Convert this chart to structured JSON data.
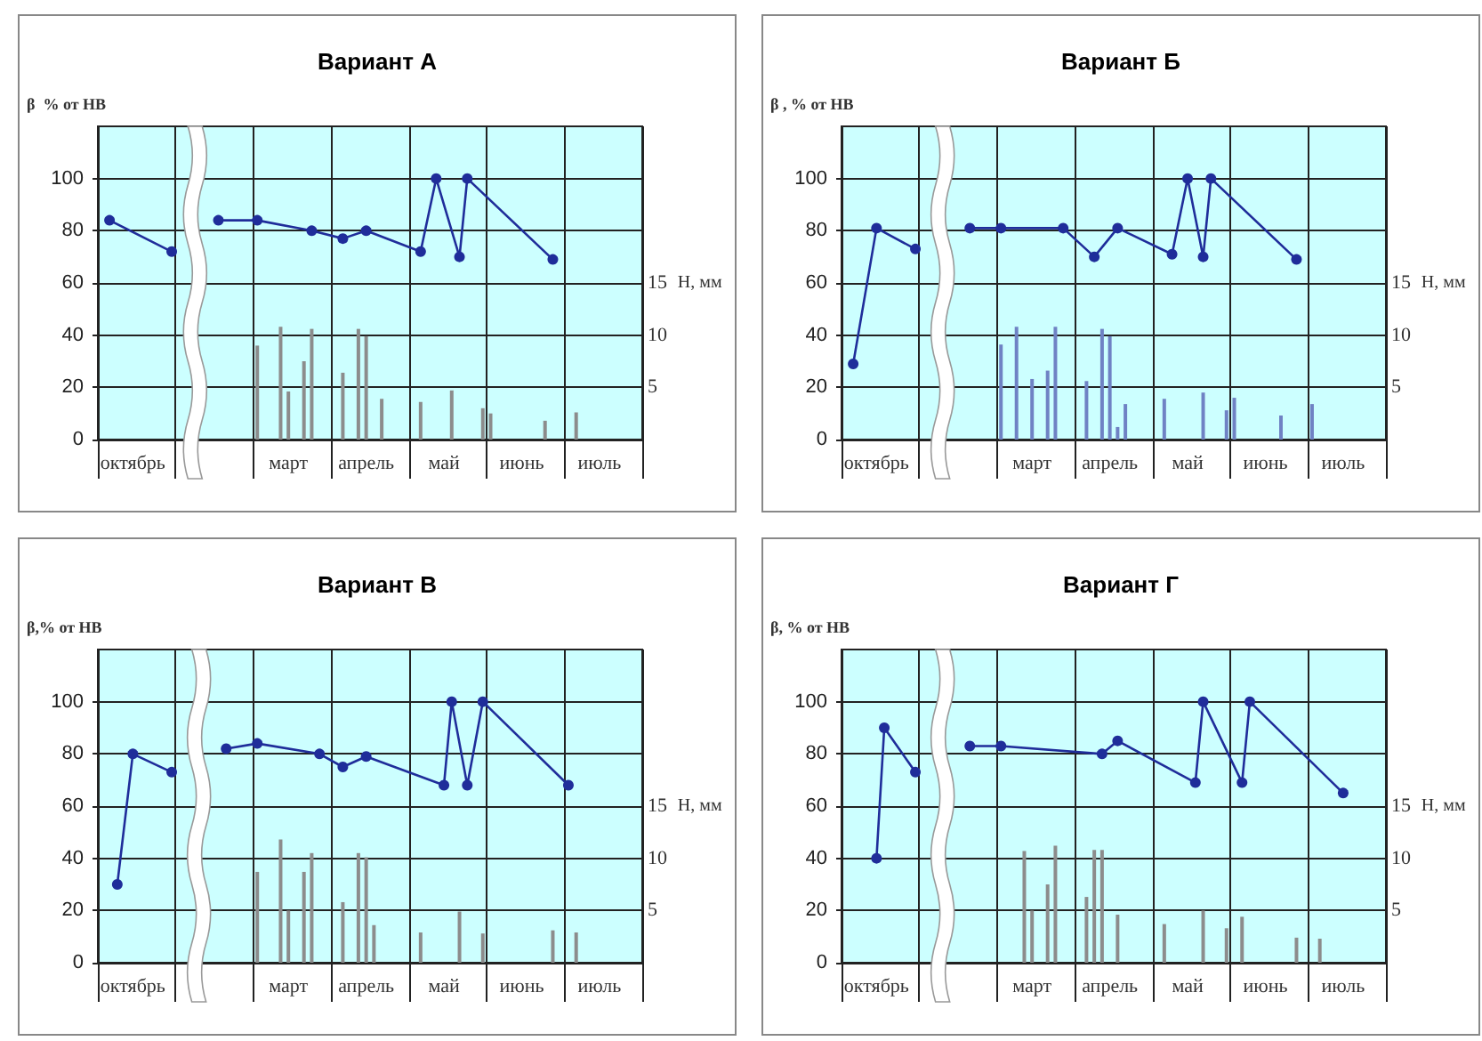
{
  "chart_data": [
    {
      "type": "line",
      "title": "Вариант А",
      "ylabel": "β  % от НВ",
      "y2label": "H, мм",
      "categories": [
        null,
        null,
        null,
        null,
        "октябрь",
        null,
        null,
        null,
        null,
        null,
        null,
        null,
        null,
        null,
        null,
        null,
        null,
        null,
        null,
        null,
        null,
        null,
        null,
        null,
        "март",
        null,
        null,
        null,
        null,
        null,
        null,
        null,
        null,
        null,
        "апрель",
        null,
        null,
        null,
        null,
        null,
        null,
        null,
        null,
        null,
        "май",
        null,
        null,
        null,
        null,
        null,
        null,
        null,
        null,
        null,
        "июнь",
        null,
        null,
        null,
        null,
        null,
        null,
        null,
        null,
        null,
        "июль",
        null,
        null,
        null,
        null,
        null
      ],
      "ylim": [
        0,
        120
      ],
      "yticks": [
        0,
        20,
        40,
        60,
        80,
        100
      ],
      "y2lim": [
        0,
        30
      ],
      "y2ticks": [
        5,
        10,
        15
      ],
      "grid": true,
      "marker": "circle",
      "line_style": "solid",
      "series": [
        {
          "color": "#1f2d9a",
          "values": [
            null,
            84,
            null,
            null,
            null,
            null,
            null,
            null,
            null,
            72,
            null,
            null,
            null,
            null,
            null,
            null,
            null,
            null,
            null,
            null,
            null,
            null,
            null,
            null,
            null,
            null,
            null,
            null,
            null,
            null,
            null,
            null,
            null,
            null,
            null,
            null,
            null,
            null,
            null,
            null,
            null,
            null,
            null,
            null,
            null,
            null,
            null,
            null,
            null,
            null,
            null,
            null,
            null,
            null,
            null,
            null,
            null,
            null,
            null,
            null,
            null,
            null,
            null,
            null,
            null,
            null,
            null,
            null,
            null,
            null
          ]
        },
        {
          "color": "#1f2d9a",
          "values": [
            null,
            null,
            null,
            null,
            null,
            null,
            null,
            null,
            null,
            null,
            null,
            null,
            null,
            null,
            null,
            84,
            null,
            null,
            null,
            null,
            84,
            null,
            null,
            null,
            null,
            null,
            null,
            80,
            null,
            null,
            null,
            77,
            null,
            null,
            80,
            null,
            null,
            null,
            null,
            null,
            null,
            72,
            null,
            100,
            null,
            null,
            70,
            100,
            null,
            null,
            null,
            null,
            null,
            null,
            null,
            null,
            null,
            null,
            69,
            null,
            null,
            null,
            null,
            null,
            null,
            null,
            null,
            null,
            null,
            null
          ]
        },
        {
          "type": "bar",
          "axis": "y2",
          "color": "#8c8c8c",
          "values": [
            null,
            null,
            null,
            null,
            null,
            null,
            null,
            null,
            null,
            null,
            null,
            null,
            null,
            null,
            null,
            null,
            null,
            null,
            null,
            null,
            9,
            null,
            null,
            10.8,
            4.6,
            null,
            7.5,
            10.6,
            null,
            null,
            null,
            6.4,
            null,
            10.6,
            9.9,
            null,
            3.9,
            null,
            null,
            null,
            null,
            3.6,
            null,
            null,
            null,
            4.7,
            null,
            null,
            null,
            3,
            2.5,
            null,
            null,
            null,
            null,
            null,
            null,
            1.8,
            null,
            null,
            null,
            2.6,
            null,
            null,
            null,
            null,
            null,
            null,
            null,
            null
          ]
        }
      ]
    },
    {
      "type": "line",
      "title": "Вариант Б",
      "ylabel": "β , % от НВ",
      "y2label": "H, мм",
      "categories": [
        null,
        null,
        null,
        null,
        "октябрь",
        null,
        null,
        null,
        null,
        null,
        null,
        null,
        null,
        null,
        null,
        null,
        null,
        null,
        null,
        null,
        null,
        null,
        null,
        null,
        "март",
        null,
        null,
        null,
        null,
        null,
        null,
        null,
        null,
        null,
        "апрель",
        null,
        null,
        null,
        null,
        null,
        null,
        null,
        null,
        null,
        "май",
        null,
        null,
        null,
        null,
        null,
        null,
        null,
        null,
        null,
        "июнь",
        null,
        null,
        null,
        null,
        null,
        null,
        null,
        null,
        null,
        "июль",
        null,
        null,
        null,
        null,
        null
      ],
      "ylim": [
        0,
        120
      ],
      "yticks": [
        0,
        20,
        40,
        60,
        80,
        100
      ],
      "y2lim": [
        0,
        30
      ],
      "y2ticks": [
        5,
        10,
        15
      ],
      "grid": true,
      "marker": "circle",
      "line_style": "solid",
      "series": [
        {
          "color": "#1f2d9a",
          "values": [
            null,
            29,
            null,
            null,
            81,
            null,
            null,
            null,
            null,
            73,
            null,
            null,
            null,
            null,
            null,
            null,
            null,
            null,
            null,
            null,
            null,
            null,
            null,
            null,
            null,
            null,
            null,
            null,
            null,
            null,
            null,
            null,
            null,
            null,
            null,
            null,
            null,
            null,
            null,
            null,
            null,
            null,
            null,
            null,
            null,
            null,
            null,
            null,
            null,
            null,
            null,
            null,
            null,
            null,
            null,
            null,
            null,
            null,
            null,
            null,
            null,
            null,
            null,
            null,
            null,
            null,
            null,
            null,
            null,
            null
          ]
        },
        {
          "color": "#1f2d9a",
          "values": [
            null,
            null,
            null,
            null,
            null,
            null,
            null,
            null,
            null,
            null,
            null,
            null,
            null,
            null,
            null,
            null,
            81,
            null,
            null,
            null,
            81,
            null,
            null,
            null,
            null,
            null,
            null,
            null,
            81,
            null,
            null,
            null,
            70,
            null,
            null,
            81,
            null,
            null,
            null,
            null,
            null,
            null,
            71,
            null,
            100,
            null,
            70,
            100,
            null,
            null,
            null,
            null,
            null,
            null,
            null,
            null,
            null,
            null,
            69,
            null,
            null,
            null,
            null,
            null,
            null,
            null,
            null,
            null,
            null,
            null
          ]
        },
        {
          "type": "bar",
          "axis": "y2",
          "color": "#6f82c4",
          "values": [
            null,
            null,
            null,
            null,
            null,
            null,
            null,
            null,
            null,
            null,
            null,
            null,
            null,
            null,
            null,
            null,
            null,
            null,
            null,
            null,
            9.1,
            null,
            10.8,
            null,
            5.8,
            null,
            6.6,
            10.8,
            null,
            null,
            null,
            5.6,
            null,
            10.6,
            9.9,
            1.2,
            3.4,
            null,
            null,
            null,
            null,
            3.9,
            null,
            null,
            null,
            null,
            4.5,
            null,
            null,
            2.8,
            4,
            null,
            null,
            null,
            null,
            null,
            2.3,
            null,
            null,
            null,
            3.4,
            null,
            null,
            null,
            null,
            null,
            null,
            null,
            null,
            null
          ]
        }
      ]
    },
    {
      "type": "line",
      "title": "Вариант В",
      "ylabel": "β,% от НВ",
      "y2label": "H, мм",
      "categories": [
        null,
        null,
        null,
        null,
        "октябрь",
        null,
        null,
        null,
        null,
        null,
        null,
        null,
        null,
        null,
        null,
        null,
        null,
        null,
        null,
        null,
        null,
        null,
        null,
        null,
        "март",
        null,
        null,
        null,
        null,
        null,
        null,
        null,
        null,
        null,
        "апрель",
        null,
        null,
        null,
        null,
        null,
        null,
        null,
        null,
        null,
        "май",
        null,
        null,
        null,
        null,
        null,
        null,
        null,
        null,
        null,
        "июнь",
        null,
        null,
        null,
        null,
        null,
        null,
        null,
        null,
        null,
        "июль",
        null,
        null,
        null,
        null,
        null
      ],
      "ylim": [
        0,
        120
      ],
      "yticks": [
        0,
        20,
        40,
        60,
        80,
        100
      ],
      "y2lim": [
        0,
        30
      ],
      "y2ticks": [
        5,
        10,
        15
      ],
      "grid": true,
      "marker": "circle",
      "line_style": "solid",
      "series": [
        {
          "color": "#1f2d9a",
          "values": [
            null,
            null,
            30,
            null,
            80,
            null,
            null,
            null,
            null,
            73,
            null,
            null,
            null,
            null,
            null,
            null,
            null,
            null,
            null,
            null,
            null,
            null,
            null,
            null,
            null,
            null,
            null,
            null,
            null,
            null,
            null,
            null,
            null,
            null,
            null,
            null,
            null,
            null,
            null,
            null,
            null,
            null,
            null,
            null,
            null,
            null,
            null,
            null,
            null,
            null,
            null,
            null,
            null,
            null,
            null,
            null,
            null,
            null,
            null,
            null,
            null,
            null,
            null,
            null,
            null,
            null,
            null,
            null,
            null,
            null
          ]
        },
        {
          "color": "#1f2d9a",
          "values": [
            null,
            null,
            null,
            null,
            null,
            null,
            null,
            null,
            null,
            null,
            null,
            null,
            null,
            null,
            null,
            null,
            82,
            null,
            null,
            null,
            84,
            null,
            null,
            null,
            null,
            null,
            null,
            null,
            80,
            null,
            null,
            75,
            null,
            null,
            79,
            null,
            null,
            null,
            null,
            null,
            null,
            null,
            null,
            null,
            68,
            100,
            null,
            68,
            null,
            100,
            null,
            null,
            null,
            null,
            null,
            null,
            null,
            null,
            null,
            null,
            68,
            null,
            null,
            null,
            null,
            null,
            null,
            null,
            null,
            null
          ]
        },
        {
          "type": "bar",
          "axis": "y2",
          "color": "#8c8c8c",
          "values": [
            null,
            null,
            null,
            null,
            null,
            null,
            null,
            null,
            null,
            null,
            null,
            null,
            null,
            null,
            null,
            null,
            null,
            null,
            null,
            null,
            8.7,
            null,
            null,
            11.8,
            5,
            null,
            8.7,
            10.5,
            null,
            null,
            null,
            5.8,
            null,
            10.5,
            10.1,
            3.6,
            null,
            null,
            null,
            null,
            null,
            2.9,
            null,
            null,
            null,
            null,
            4.9,
            null,
            null,
            2.8,
            null,
            null,
            null,
            null,
            null,
            null,
            null,
            null,
            3.1,
            null,
            null,
            2.9,
            null,
            null,
            null,
            null,
            null,
            null,
            null,
            null
          ]
        }
      ]
    },
    {
      "type": "line",
      "title": "Вариант Г",
      "ylabel": "β, % от НВ",
      "y2label": "H, мм",
      "categories": [
        null,
        null,
        null,
        null,
        "октябрь",
        null,
        null,
        null,
        null,
        null,
        null,
        null,
        null,
        null,
        null,
        null,
        null,
        null,
        null,
        null,
        null,
        null,
        null,
        null,
        "март",
        null,
        null,
        null,
        null,
        null,
        null,
        null,
        null,
        null,
        "апрель",
        null,
        null,
        null,
        null,
        null,
        null,
        null,
        null,
        null,
        "май",
        null,
        null,
        null,
        null,
        null,
        null,
        null,
        null,
        null,
        "июнь",
        null,
        null,
        null,
        null,
        null,
        null,
        null,
        null,
        null,
        "июль",
        null,
        null,
        null,
        null,
        null
      ],
      "ylim": [
        0,
        120
      ],
      "yticks": [
        0,
        20,
        40,
        60,
        80,
        100
      ],
      "y2lim": [
        0,
        30
      ],
      "y2ticks": [
        5,
        10,
        15
      ],
      "grid": true,
      "marker": "circle",
      "line_style": "solid",
      "series": [
        {
          "color": "#1f2d9a",
          "values": [
            null,
            null,
            null,
            null,
            40,
            90,
            null,
            null,
            null,
            73,
            null,
            null,
            null,
            null,
            null,
            null,
            null,
            null,
            null,
            null,
            null,
            null,
            null,
            null,
            null,
            null,
            null,
            null,
            null,
            null,
            null,
            null,
            null,
            null,
            null,
            null,
            null,
            null,
            null,
            null,
            null,
            null,
            null,
            null,
            null,
            null,
            null,
            null,
            null,
            null,
            null,
            null,
            null,
            null,
            null,
            null,
            null,
            null,
            null,
            null,
            null,
            null,
            null,
            null,
            null,
            null,
            null,
            null,
            null,
            null
          ]
        },
        {
          "color": "#1f2d9a",
          "values": [
            null,
            null,
            null,
            null,
            null,
            null,
            null,
            null,
            null,
            null,
            null,
            null,
            null,
            null,
            null,
            null,
            83,
            null,
            null,
            null,
            83,
            null,
            null,
            null,
            null,
            null,
            null,
            null,
            null,
            null,
            null,
            null,
            null,
            80,
            null,
            85,
            null,
            null,
            null,
            null,
            null,
            null,
            null,
            null,
            null,
            69,
            100,
            null,
            null,
            null,
            null,
            69,
            100,
            null,
            null,
            null,
            null,
            null,
            null,
            null,
            null,
            null,
            null,
            null,
            65,
            null,
            null,
            null,
            null,
            null
          ]
        },
        {
          "type": "bar",
          "axis": "y2",
          "color": "#8c8c8c",
          "values": [
            null,
            null,
            null,
            null,
            null,
            null,
            null,
            null,
            null,
            null,
            null,
            null,
            null,
            null,
            null,
            null,
            null,
            null,
            null,
            null,
            null,
            null,
            null,
            10.7,
            5,
            null,
            7.5,
            11.2,
            null,
            null,
            null,
            6.3,
            10.8,
            10.8,
            null,
            4.6,
            null,
            null,
            null,
            null,
            null,
            3.7,
            null,
            null,
            null,
            null,
            5,
            null,
            null,
            3.3,
            null,
            4.4,
            null,
            null,
            null,
            null,
            null,
            null,
            2.4,
            null,
            null,
            2.3,
            null,
            null,
            null,
            null,
            null,
            null,
            null,
            null
          ]
        }
      ]
    }
  ]
}
